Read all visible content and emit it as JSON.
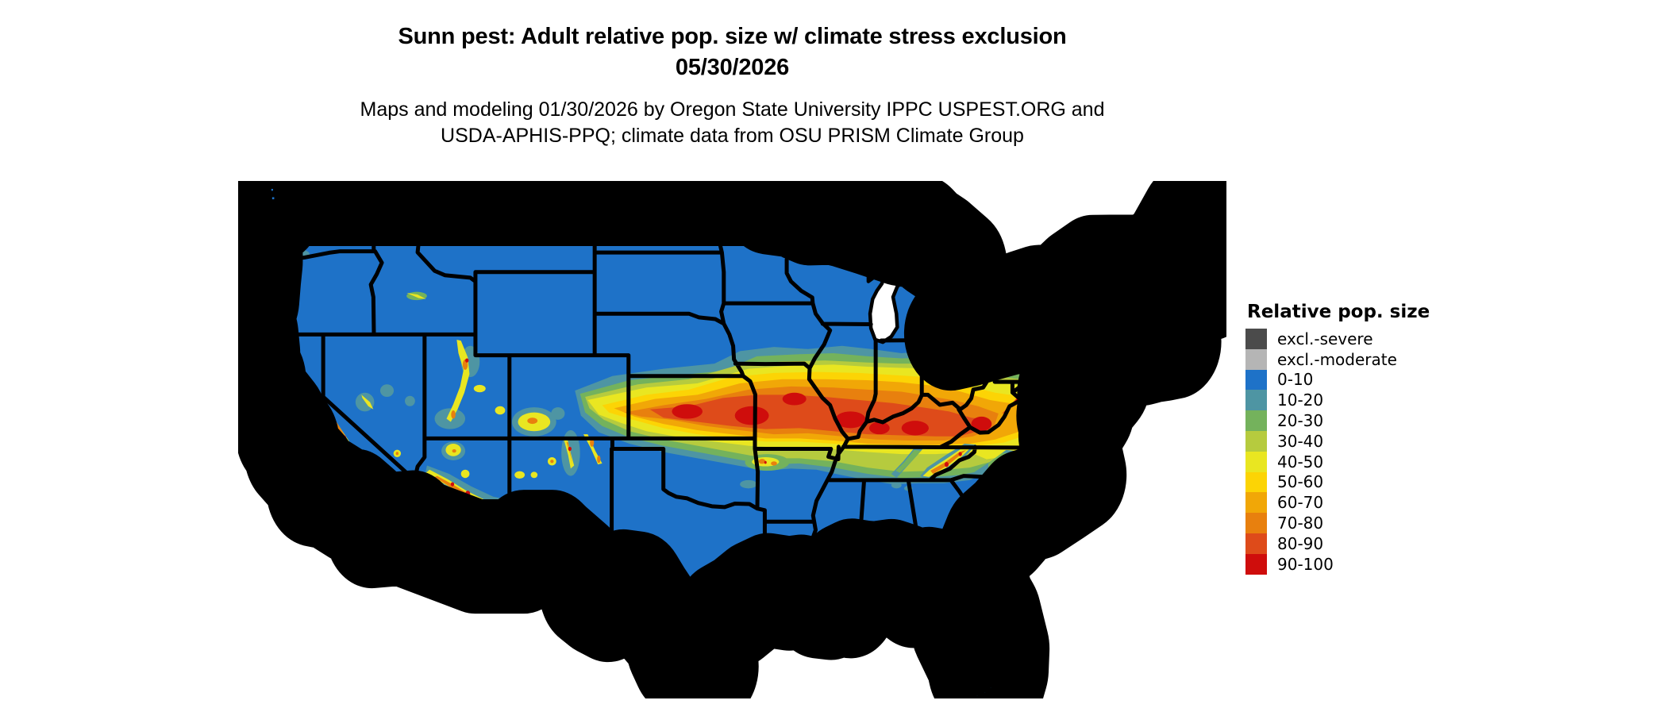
{
  "title": {
    "line1": "Sunn pest: Adult relative pop. size w/ climate stress exclusion",
    "line2": "05/30/2026"
  },
  "subtitle": {
    "line1": "Maps and modeling 01/30/2026 by Oregon State University IPPC USPEST.ORG and",
    "line2": "USDA-APHIS-PPQ; climate data from OSU PRISM Climate Group"
  },
  "legend": {
    "title": "Relative pop. size",
    "items": [
      {
        "label": "excl.-severe",
        "color": "#4b4b4b"
      },
      {
        "label": "excl.-moderate",
        "color": "#b5b5b5"
      },
      {
        "label": "0-10",
        "color": "#1e72c8"
      },
      {
        "label": "10-20",
        "color": "#4e95a3"
      },
      {
        "label": "20-30",
        "color": "#74b25c"
      },
      {
        "label": "30-40",
        "color": "#b6cb3e"
      },
      {
        "label": "40-50",
        "color": "#e9e621"
      },
      {
        "label": "50-60",
        "color": "#fcd405"
      },
      {
        "label": "60-70",
        "color": "#f1a707"
      },
      {
        "label": "70-80",
        "color": "#e8800e"
      },
      {
        "label": "80-90",
        "color": "#de4b1a"
      },
      {
        "label": "90-100",
        "color": "#cf0d0c"
      }
    ]
  },
  "map": {
    "region": "Contiguous United States",
    "ocean_color": "#ffffff",
    "state_border_color": "#000000",
    "base_fill_class": "0-10"
  }
}
